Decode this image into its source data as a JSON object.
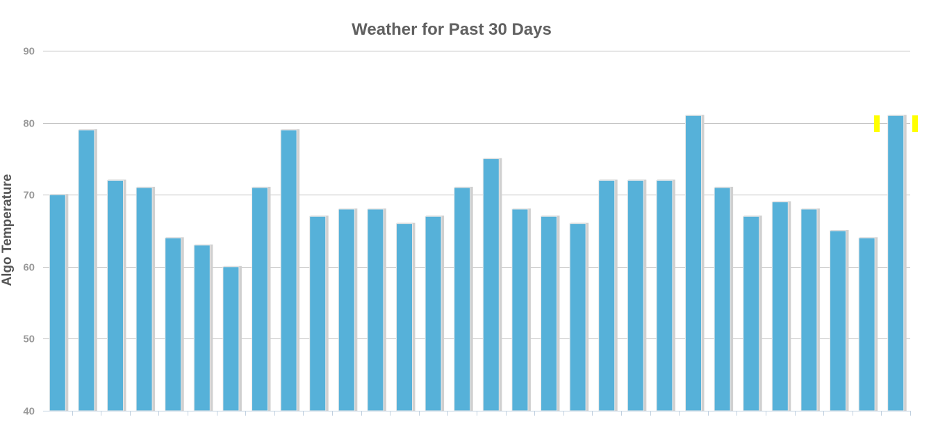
{
  "chart_data": {
    "type": "bar",
    "title": "Weather for Past 30 Days",
    "xlabel": "",
    "ylabel": "Algo Temperature",
    "ylim": [
      40,
      90
    ],
    "yticks": [
      "40",
      "50",
      "60",
      "70",
      "80",
      "90"
    ],
    "grid": true,
    "values": [
      70,
      79,
      72,
      71,
      64,
      63,
      60,
      71,
      79,
      67,
      68,
      68,
      66,
      67,
      71,
      75,
      68,
      67,
      66,
      72,
      72,
      72,
      81,
      71,
      67,
      69,
      68,
      65,
      64,
      81
    ],
    "bar_color": "#56b1d9",
    "highlight_color": "#ffff00"
  }
}
